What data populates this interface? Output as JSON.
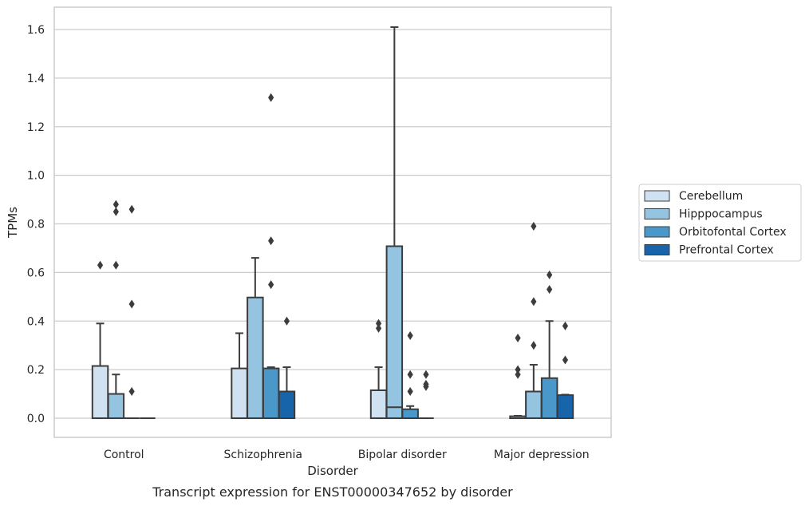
{
  "chart_data": {
    "type": "box",
    "caption": "Transcript expression for ENST00000347652 by disorder",
    "xlabel": "Disorder",
    "ylabel": "TPMs",
    "ylim": [
      -0.08,
      1.69
    ],
    "yticks": [
      0.0,
      0.2,
      0.4,
      0.6,
      0.8,
      1.0,
      1.2,
      1.4,
      1.6
    ],
    "ytick_labels": [
      "0.0",
      "0.2",
      "0.4",
      "0.6",
      "0.8",
      "1.0",
      "1.2",
      "1.4",
      "1.6"
    ],
    "grid": "horizontal",
    "legend_position": "right",
    "categories": [
      "Control",
      "Schizophrenia",
      "Bipolar disorder",
      "Major depression"
    ],
    "series": [
      {
        "name": "Cerebellum",
        "color": "#d0e1f2",
        "boxes": [
          {
            "whislo": 0.0,
            "q1": 0.0,
            "med": 0.0,
            "q3": 0.215,
            "whishi": 0.39,
            "fliers": [
              0.63
            ]
          },
          {
            "whislo": 0.0,
            "q1": 0.0,
            "med": 0.0,
            "q3": 0.205,
            "whishi": 0.35,
            "fliers": []
          },
          {
            "whislo": 0.0,
            "q1": 0.0,
            "med": 0.0,
            "q3": 0.115,
            "whishi": 0.21,
            "fliers": [
              0.37,
              0.39
            ]
          },
          {
            "whislo": 0.0,
            "q1": 0.0,
            "med": 0.0,
            "q3": 0.008,
            "whishi": 0.01,
            "fliers": [
              0.18,
              0.2,
              0.33
            ]
          }
        ]
      },
      {
        "name": "Hipppocampus",
        "color": "#94c4df",
        "boxes": [
          {
            "whislo": 0.0,
            "q1": 0.0,
            "med": 0.0,
            "q3": 0.1,
            "whishi": 0.18,
            "fliers": [
              0.63,
              0.85,
              0.88
            ]
          },
          {
            "whislo": 0.0,
            "q1": 0.0,
            "med": 0.0,
            "q3": 0.497,
            "whishi": 0.66,
            "fliers": []
          },
          {
            "whislo": 0.0,
            "q1": 0.0,
            "med": 0.045,
            "q3": 0.708,
            "whishi": 1.61,
            "fliers": []
          },
          {
            "whislo": 0.0,
            "q1": 0.0,
            "med": 0.0,
            "q3": 0.11,
            "whishi": 0.22,
            "fliers": [
              0.3,
              0.48,
              0.79
            ]
          }
        ]
      },
      {
        "name": "Orbitofontal Cortex",
        "color": "#4a98c9",
        "boxes": [
          {
            "whislo": 0.0,
            "q1": 0.0,
            "med": 0.0,
            "q3": 0.0,
            "whishi": 0.0,
            "fliers": [
              0.11,
              0.47,
              0.86
            ]
          },
          {
            "whislo": 0.0,
            "q1": 0.0,
            "med": 0.0,
            "q3": 0.205,
            "whishi": 0.21,
            "fliers": [
              0.55,
              0.73,
              1.32
            ]
          },
          {
            "whislo": 0.0,
            "q1": 0.0,
            "med": 0.0,
            "q3": 0.037,
            "whishi": 0.05,
            "fliers": [
              0.11,
              0.18,
              0.34
            ]
          },
          {
            "whislo": 0.0,
            "q1": 0.0,
            "med": 0.0,
            "q3": 0.165,
            "whishi": 0.4,
            "fliers": [
              0.53,
              0.59
            ]
          }
        ]
      },
      {
        "name": "Prefrontal Cortex",
        "color": "#1764ab",
        "boxes": [
          {
            "whislo": 0.0,
            "q1": 0.0,
            "med": 0.0,
            "q3": 0.0,
            "whishi": 0.0,
            "fliers": []
          },
          {
            "whislo": 0.0,
            "q1": 0.0,
            "med": 0.0,
            "q3": 0.11,
            "whishi": 0.21,
            "fliers": [
              0.4
            ]
          },
          {
            "whislo": 0.0,
            "q1": 0.0,
            "med": 0.0,
            "q3": 0.0,
            "whishi": 0.0,
            "fliers": [
              0.13,
              0.14,
              0.18
            ]
          },
          {
            "whislo": 0.0,
            "q1": 0.0,
            "med": 0.0,
            "q3": 0.095,
            "whishi": 0.097,
            "fliers": [
              0.24,
              0.38
            ]
          }
        ]
      }
    ]
  }
}
